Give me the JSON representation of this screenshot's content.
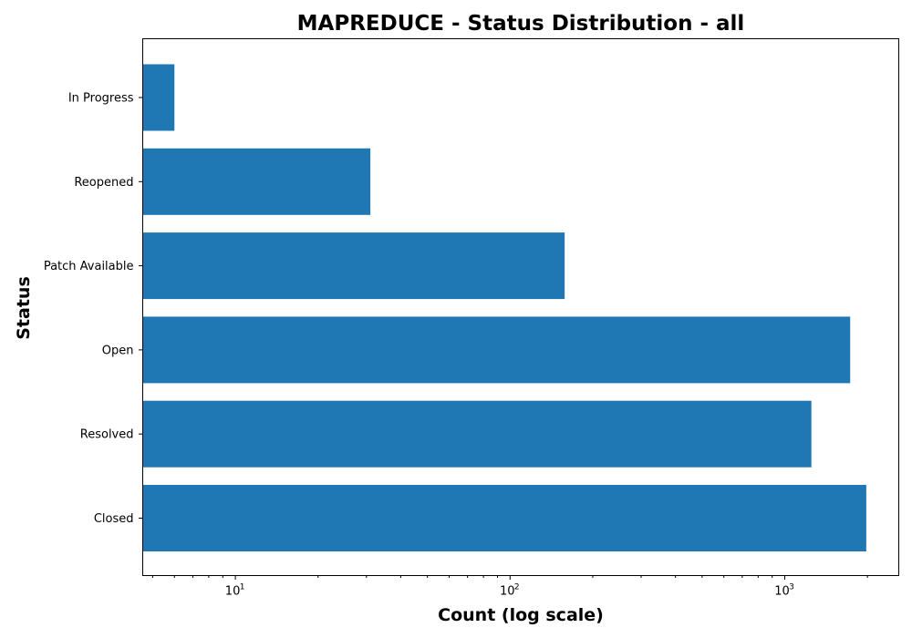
{
  "chart_data": {
    "type": "bar",
    "orientation": "horizontal",
    "title": "MAPREDUCE - Status Distribution - all",
    "xlabel": "Count (log scale)",
    "ylabel": "Status",
    "xscale": "log",
    "xlim": [
      4.6,
      2600
    ],
    "x_ticks": [
      {
        "value": 10,
        "base": "10",
        "exp": "1"
      },
      {
        "value": 100,
        "base": "10",
        "exp": "2"
      },
      {
        "value": 1000,
        "base": "10",
        "exp": "3"
      }
    ],
    "categories": [
      "In Progress",
      "Reopened",
      "Patch Available",
      "Open",
      "Resolved",
      "Closed"
    ],
    "values": [
      6,
      31,
      158,
      1730,
      1250,
      1980
    ],
    "bar_color": "#1f77b4",
    "grid": false,
    "legend": "none"
  }
}
